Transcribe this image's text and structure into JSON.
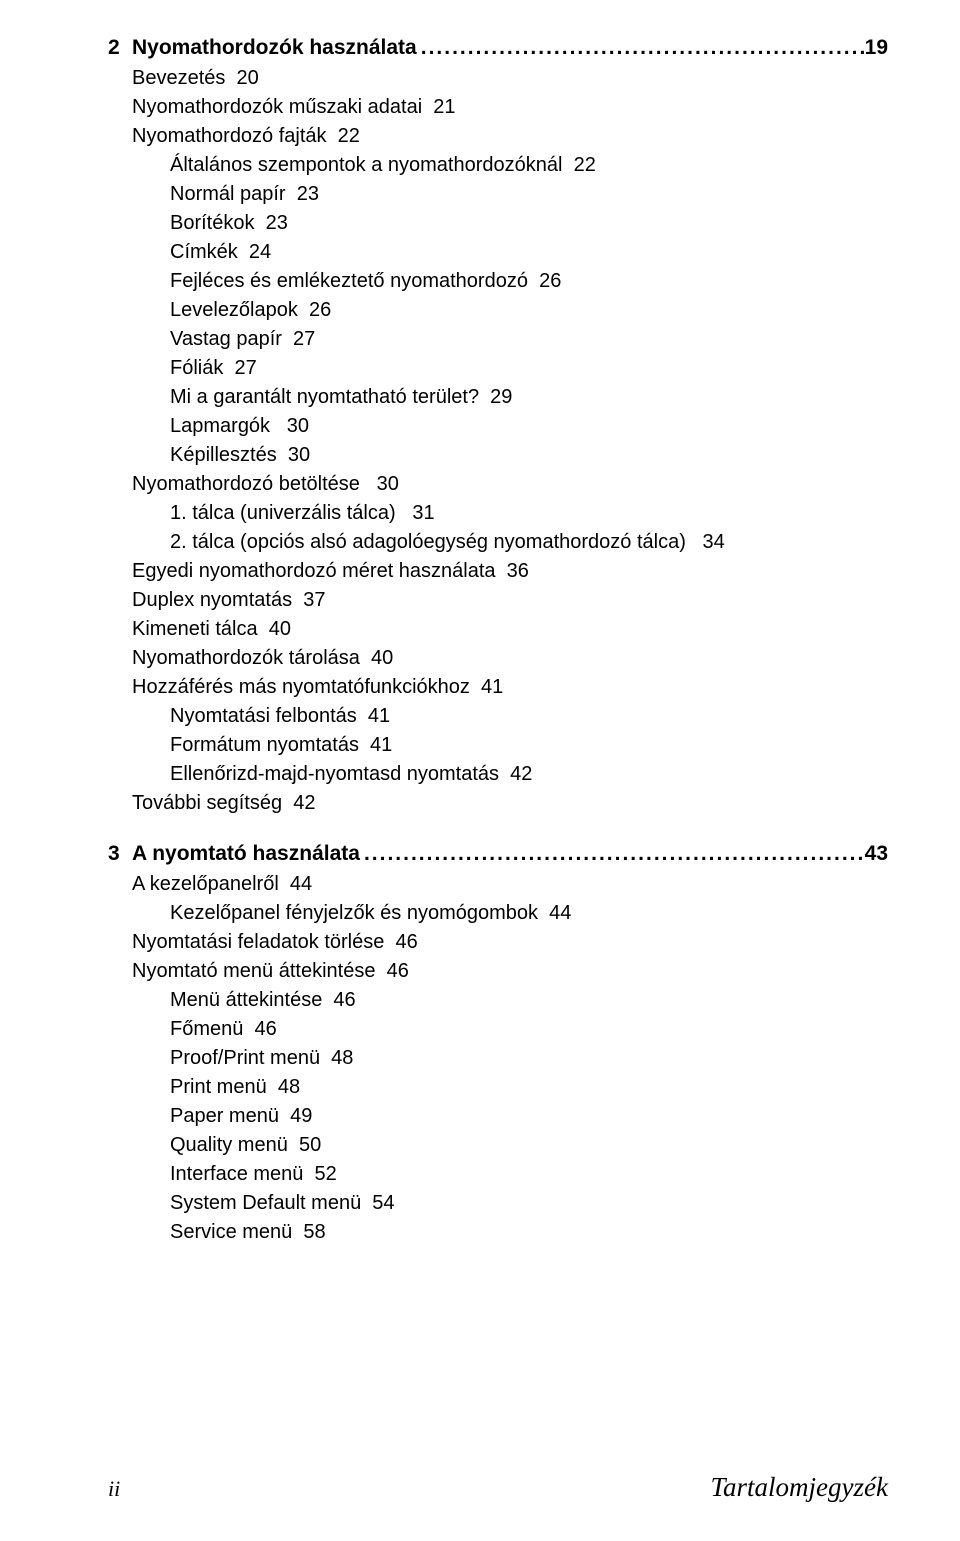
{
  "sections": [
    {
      "num": "2",
      "title": "Nyomathordozók használata",
      "page": "19",
      "items": [
        {
          "text": "Bevezetés  20",
          "indent": 1
        },
        {
          "text": "Nyomathordozók műszaki adatai  21",
          "indent": 1
        },
        {
          "text": "Nyomathordozó fajták  22",
          "indent": 1
        },
        {
          "text": "Általános szempontok a nyomathordozóknál  22",
          "indent": 2
        },
        {
          "text": "Normál papír  23",
          "indent": 2
        },
        {
          "text": "Borítékok  23",
          "indent": 2
        },
        {
          "text": "Címkék  24",
          "indent": 2
        },
        {
          "text": "Fejléces és emlékeztető nyomathordozó  26",
          "indent": 2
        },
        {
          "text": "Levelezőlapok  26",
          "indent": 2
        },
        {
          "text": "Vastag papír  27",
          "indent": 2
        },
        {
          "text": "Fóliák  27",
          "indent": 2
        },
        {
          "text": "Mi a garantált nyomtatható terület?  29",
          "indent": 2
        },
        {
          "text": "Lapmargók   30",
          "indent": 2
        },
        {
          "text": "Képillesztés  30",
          "indent": 2
        },
        {
          "text": "Nyomathordozó betöltése   30",
          "indent": 1
        },
        {
          "text": "1. tálca (univerzális tálca)   31",
          "indent": 2
        },
        {
          "text": "2. tálca (opciós alsó adagolóegység nyomathordozó tálca)   34",
          "indent": 2
        },
        {
          "text": "Egyedi nyomathordozó méret használata  36",
          "indent": 1
        },
        {
          "text": "Duplex nyomtatás  37",
          "indent": 1
        },
        {
          "text": "Kimeneti tálca  40",
          "indent": 1
        },
        {
          "text": "Nyomathordozók tárolása  40",
          "indent": 1
        },
        {
          "text": "Hozzáférés más nyomtatófunkciókhoz  41",
          "indent": 1
        },
        {
          "text": "Nyomtatási felbontás  41",
          "indent": 2
        },
        {
          "text": "Formátum nyomtatás  41",
          "indent": 2
        },
        {
          "text": "Ellenőrizd-majd-nyomtasd nyomtatás  42",
          "indent": 2
        },
        {
          "text": "További segítség  42",
          "indent": 1
        }
      ]
    },
    {
      "num": "3",
      "title": "A nyomtató használata",
      "page": "43",
      "items": [
        {
          "text": "A kezelőpanelről  44",
          "indent": 1
        },
        {
          "text": "Kezelőpanel fényjelzők és nyomógombok  44",
          "indent": 2
        },
        {
          "text": "Nyomtatási feladatok törlése  46",
          "indent": 1
        },
        {
          "text": "Nyomtató menü áttekintése  46",
          "indent": 1
        },
        {
          "text": "Menü áttekintése  46",
          "indent": 2
        },
        {
          "text": "Főmenü  46",
          "indent": 2
        },
        {
          "text": "Proof/Print menü  48",
          "indent": 2
        },
        {
          "text": "Print menü  48",
          "indent": 2
        },
        {
          "text": "Paper menü  49",
          "indent": 2
        },
        {
          "text": "Quality menü  50",
          "indent": 2
        },
        {
          "text": "Interface menü  52",
          "indent": 2
        },
        {
          "text": "System Default menü  54",
          "indent": 2
        },
        {
          "text": "Service menü  58",
          "indent": 2
        }
      ]
    }
  ],
  "dots_fill": "....................................................................................................................................................",
  "footer": {
    "left": "ii",
    "right": "Tartalomjegyzék"
  }
}
